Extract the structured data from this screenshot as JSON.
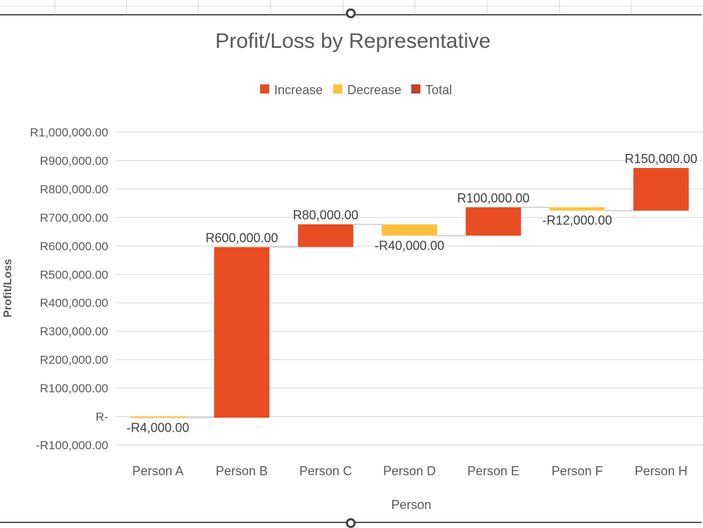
{
  "chart_data": {
    "type": "waterfall",
    "title": "Profit/Loss by Representative",
    "xlabel": "Person",
    "ylabel": "Profit/Loss",
    "ylim": [
      -100000,
      1000000
    ],
    "y_tick_values": [
      1000000,
      900000,
      800000,
      700000,
      600000,
      500000,
      400000,
      300000,
      200000,
      100000,
      0,
      -100000
    ],
    "y_tick_labels": [
      "R1,000,000.00",
      "R900,000.00",
      "R800,000.00",
      "R700,000.00",
      "R600,000.00",
      "R500,000.00",
      "R400,000.00",
      "R300,000.00",
      "R200,000.00",
      "R100,000.00",
      "R-",
      "-R100,000.00"
    ],
    "grid": true,
    "legend_position": "top",
    "legend": [
      {
        "name": "Increase",
        "color": "#E84C22"
      },
      {
        "name": "Decrease",
        "color": "#FFBF3F"
      },
      {
        "name": "Total",
        "color": "#C0432B"
      }
    ],
    "categories": [
      "Person A",
      "Person B",
      "Person C",
      "Person D",
      "Person E",
      "Person F",
      "Person H"
    ],
    "values": [
      -4000,
      600000,
      80000,
      -40000,
      100000,
      -12000,
      150000
    ],
    "data_labels": [
      "-R4,000.00",
      "R600,000.00",
      "R80,000.00",
      "-R40,000.00",
      "R100,000.00",
      "-R12,000.00",
      "R150,000.00"
    ]
  }
}
